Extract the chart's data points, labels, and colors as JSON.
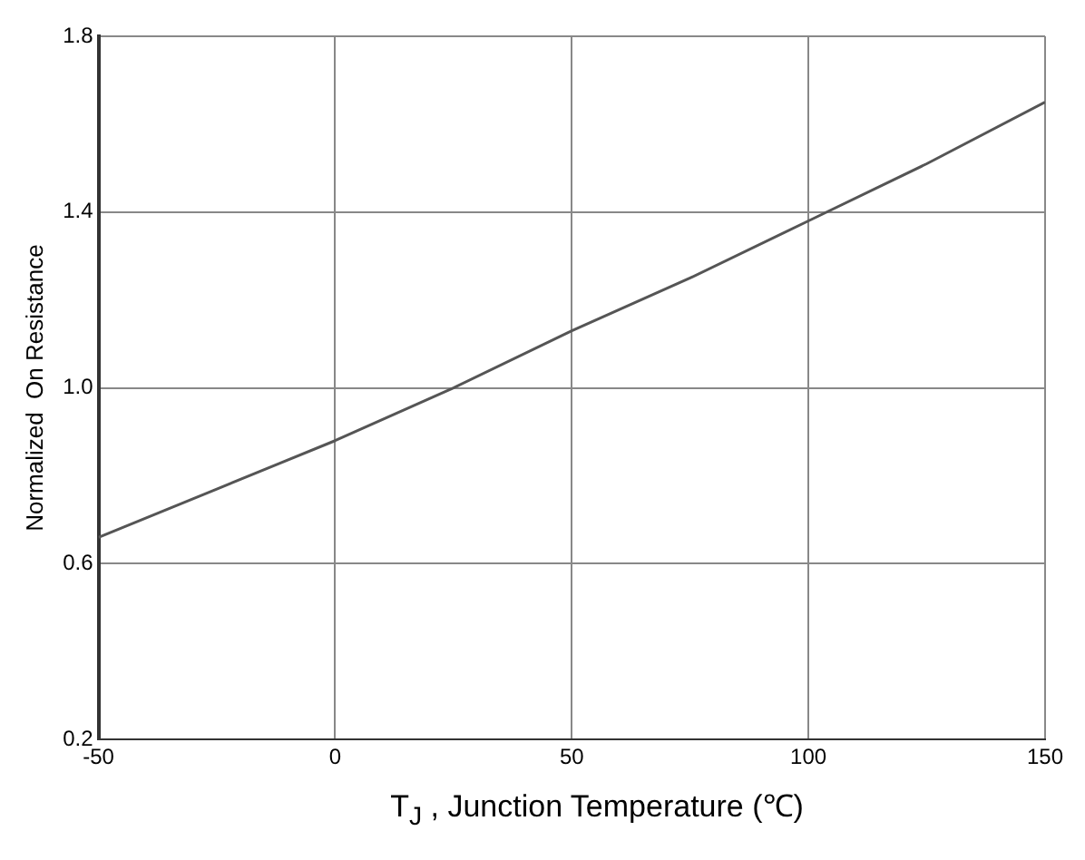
{
  "chart_data": {
    "type": "line",
    "xlabel": "T$_{J}$ , Junction Temperature (℃)",
    "ylabel": "Normalized  On Resistance",
    "x": [
      -50,
      -25,
      0,
      25,
      50,
      75,
      100,
      125,
      150
    ],
    "series": [
      {
        "color": "#555555",
        "values": [
          0.66,
          0.77,
          0.88,
          1.0,
          1.13,
          1.25,
          1.38,
          1.51,
          1.65
        ]
      }
    ],
    "xlim": [
      -50,
      150
    ],
    "xticks": [
      -50,
      0,
      50,
      100,
      150
    ],
    "ylim": [
      0.2,
      1.8
    ],
    "yticks": [
      0.2,
      0.6,
      {
        "value": 1,
        "label": "1.0"
      },
      1.4,
      1.8
    ],
    "grid": true,
    "legend": false,
    "marker": "none",
    "line_style": "solid"
  }
}
